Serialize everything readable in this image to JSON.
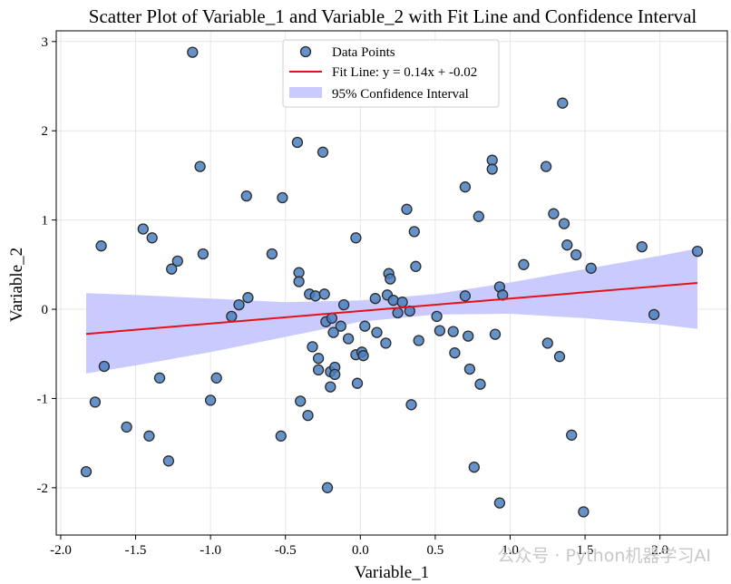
{
  "chart_data": {
    "type": "scatter",
    "title": "Scatter Plot of Variable_1 and Variable_2 with Fit Line and Confidence Interval",
    "xlabel": "Variable_1",
    "ylabel": "Variable_2",
    "xlim": [
      -2.03,
      2.45
    ],
    "ylim": [
      -2.53,
      3.12
    ],
    "xticks": [
      -2.0,
      -1.5,
      -1.0,
      -0.5,
      0.0,
      0.5,
      1.0,
      1.5,
      2.0
    ],
    "xtick_labels": [
      "-2.0",
      "-1.5",
      "-1.0",
      "-0.5",
      "0.0",
      "0.5",
      "1.0",
      "1.5",
      "2.0"
    ],
    "yticks": [
      -2,
      -1,
      0,
      1,
      2,
      3
    ],
    "ytick_labels": [
      "-2",
      "-1",
      "0",
      "1",
      "2",
      "3"
    ],
    "grid": true,
    "legend_position": "top-center",
    "colors": {
      "points": "#4a7fbf",
      "point_edge": "#2b2b2b",
      "fit_line": "#e8101a",
      "ci_band": "#c9cbff"
    },
    "series": [
      {
        "name": "Data Points",
        "kind": "scatter",
        "points": [
          [
            -1.83,
            -1.82
          ],
          [
            -1.77,
            -1.04
          ],
          [
            -1.73,
            0.71
          ],
          [
            -1.71,
            -0.64
          ],
          [
            -1.56,
            -1.32
          ],
          [
            -1.45,
            0.9
          ],
          [
            -1.41,
            -1.42
          ],
          [
            -1.39,
            0.8
          ],
          [
            -1.34,
            -0.77
          ],
          [
            -1.28,
            -1.7
          ],
          [
            -1.26,
            0.45
          ],
          [
            -1.22,
            0.54
          ],
          [
            -1.12,
            2.88
          ],
          [
            -1.07,
            1.6
          ],
          [
            -1.05,
            0.62
          ],
          [
            -1.0,
            -1.02
          ],
          [
            -0.96,
            -0.77
          ],
          [
            -0.86,
            -0.08
          ],
          [
            -0.81,
            0.05
          ],
          [
            -0.76,
            1.27
          ],
          [
            -0.75,
            0.13
          ],
          [
            -0.59,
            0.62
          ],
          [
            -0.53,
            -1.42
          ],
          [
            -0.52,
            1.25
          ],
          [
            -0.42,
            1.87
          ],
          [
            -0.41,
            0.41
          ],
          [
            -0.41,
            0.31
          ],
          [
            -0.4,
            -1.03
          ],
          [
            -0.35,
            -1.19
          ],
          [
            -0.34,
            0.17
          ],
          [
            -0.32,
            -0.42
          ],
          [
            -0.3,
            0.15
          ],
          [
            -0.28,
            -0.55
          ],
          [
            -0.28,
            -0.68
          ],
          [
            -0.25,
            1.76
          ],
          [
            -0.24,
            0.17
          ],
          [
            -0.23,
            -0.14
          ],
          [
            -0.22,
            -2.0
          ],
          [
            -0.2,
            -0.87
          ],
          [
            -0.2,
            -0.7
          ],
          [
            -0.19,
            -0.1
          ],
          [
            -0.18,
            -0.26
          ],
          [
            -0.17,
            -0.65
          ],
          [
            -0.17,
            -0.73
          ],
          [
            -0.13,
            -0.19
          ],
          [
            -0.11,
            0.05
          ],
          [
            -0.08,
            -0.33
          ],
          [
            -0.03,
            0.8
          ],
          [
            -0.03,
            -0.51
          ],
          [
            -0.02,
            -0.83
          ],
          [
            0.01,
            -0.48
          ],
          [
            0.02,
            -0.52
          ],
          [
            0.03,
            -0.19
          ],
          [
            0.1,
            0.12
          ],
          [
            0.11,
            -0.26
          ],
          [
            0.17,
            -0.38
          ],
          [
            0.18,
            0.16
          ],
          [
            0.19,
            0.4
          ],
          [
            0.2,
            0.34
          ],
          [
            0.22,
            0.1
          ],
          [
            0.25,
            -0.04
          ],
          [
            0.28,
            0.08
          ],
          [
            0.31,
            1.12
          ],
          [
            0.33,
            -0.02
          ],
          [
            0.34,
            -1.07
          ],
          [
            0.36,
            0.87
          ],
          [
            0.37,
            0.48
          ],
          [
            0.39,
            -0.35
          ],
          [
            0.51,
            -0.08
          ],
          [
            0.53,
            -0.24
          ],
          [
            0.62,
            -0.25
          ],
          [
            0.63,
            -0.49
          ],
          [
            0.7,
            0.15
          ],
          [
            0.7,
            1.37
          ],
          [
            0.72,
            -0.3
          ],
          [
            0.73,
            -0.67
          ],
          [
            0.76,
            -1.77
          ],
          [
            0.79,
            1.04
          ],
          [
            0.8,
            -0.84
          ],
          [
            0.88,
            1.67
          ],
          [
            0.88,
            1.57
          ],
          [
            0.9,
            -0.28
          ],
          [
            0.93,
            0.25
          ],
          [
            0.95,
            0.16
          ],
          [
            0.93,
            -2.17
          ],
          [
            1.09,
            0.5
          ],
          [
            1.24,
            1.6
          ],
          [
            1.25,
            -0.38
          ],
          [
            1.29,
            1.07
          ],
          [
            1.33,
            -0.53
          ],
          [
            1.35,
            2.31
          ],
          [
            1.36,
            0.96
          ],
          [
            1.38,
            0.72
          ],
          [
            1.41,
            -1.41
          ],
          [
            1.44,
            0.61
          ],
          [
            1.49,
            -2.27
          ],
          [
            1.54,
            0.46
          ],
          [
            1.88,
            0.7
          ],
          [
            1.96,
            -0.06
          ],
          [
            2.25,
            0.65
          ]
        ]
      },
      {
        "name": "Fit Line: y = 0.14x + -0.02",
        "kind": "line",
        "slope": 0.14,
        "intercept": -0.02,
        "x_range": [
          -1.83,
          2.25
        ]
      },
      {
        "name": "95% Confidence Interval",
        "kind": "band",
        "x": [
          -1.83,
          -1.5,
          -1.0,
          -0.5,
          0.0,
          0.5,
          1.0,
          1.5,
          2.0,
          2.25
        ],
        "upper": [
          0.18,
          0.16,
          0.12,
          0.08,
          0.1,
          0.17,
          0.3,
          0.45,
          0.6,
          0.68
        ],
        "lower": [
          -0.72,
          -0.63,
          -0.48,
          -0.31,
          -0.14,
          -0.06,
          -0.05,
          -0.1,
          -0.17,
          -0.22
        ]
      }
    ]
  },
  "watermark": {
    "text": "公众号 · Python机器学习AI"
  }
}
